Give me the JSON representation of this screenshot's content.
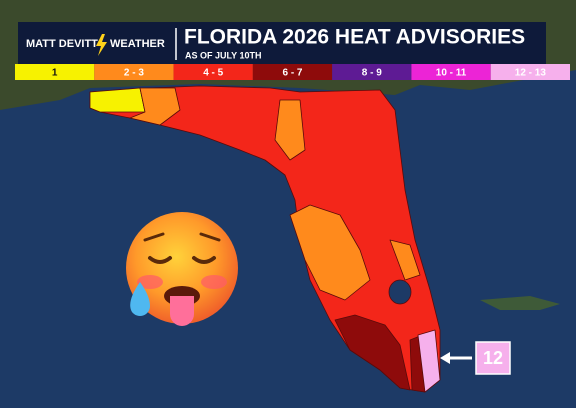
{
  "header": {
    "brand": "MATT DEVITT",
    "brand2": "WEATHER",
    "title": "FLORIDA 2026 HEAT ADVISORIES",
    "subtitle": "AS OF JULY 10TH"
  },
  "legend": [
    {
      "label": "1",
      "color": "#f7f200",
      "text_color": "#111111"
    },
    {
      "label": "2 - 3",
      "color": "#ff8a1c",
      "text_color": "#ffffff"
    },
    {
      "label": "4 - 5",
      "color": "#f3261a",
      "text_color": "#ffffff"
    },
    {
      "label": "6 - 7",
      "color": "#8e0b0b",
      "text_color": "#ffffff"
    },
    {
      "label": "8 - 9",
      "color": "#5e1b94",
      "text_color": "#ffffff"
    },
    {
      "label": "10 - 11",
      "color": "#ec24d6",
      "text_color": "#ffffff"
    },
    {
      "label": "12 - 13",
      "color": "#f6b0ec",
      "text_color": "#ffffff"
    }
  ],
  "callout": {
    "label": "12"
  }
}
